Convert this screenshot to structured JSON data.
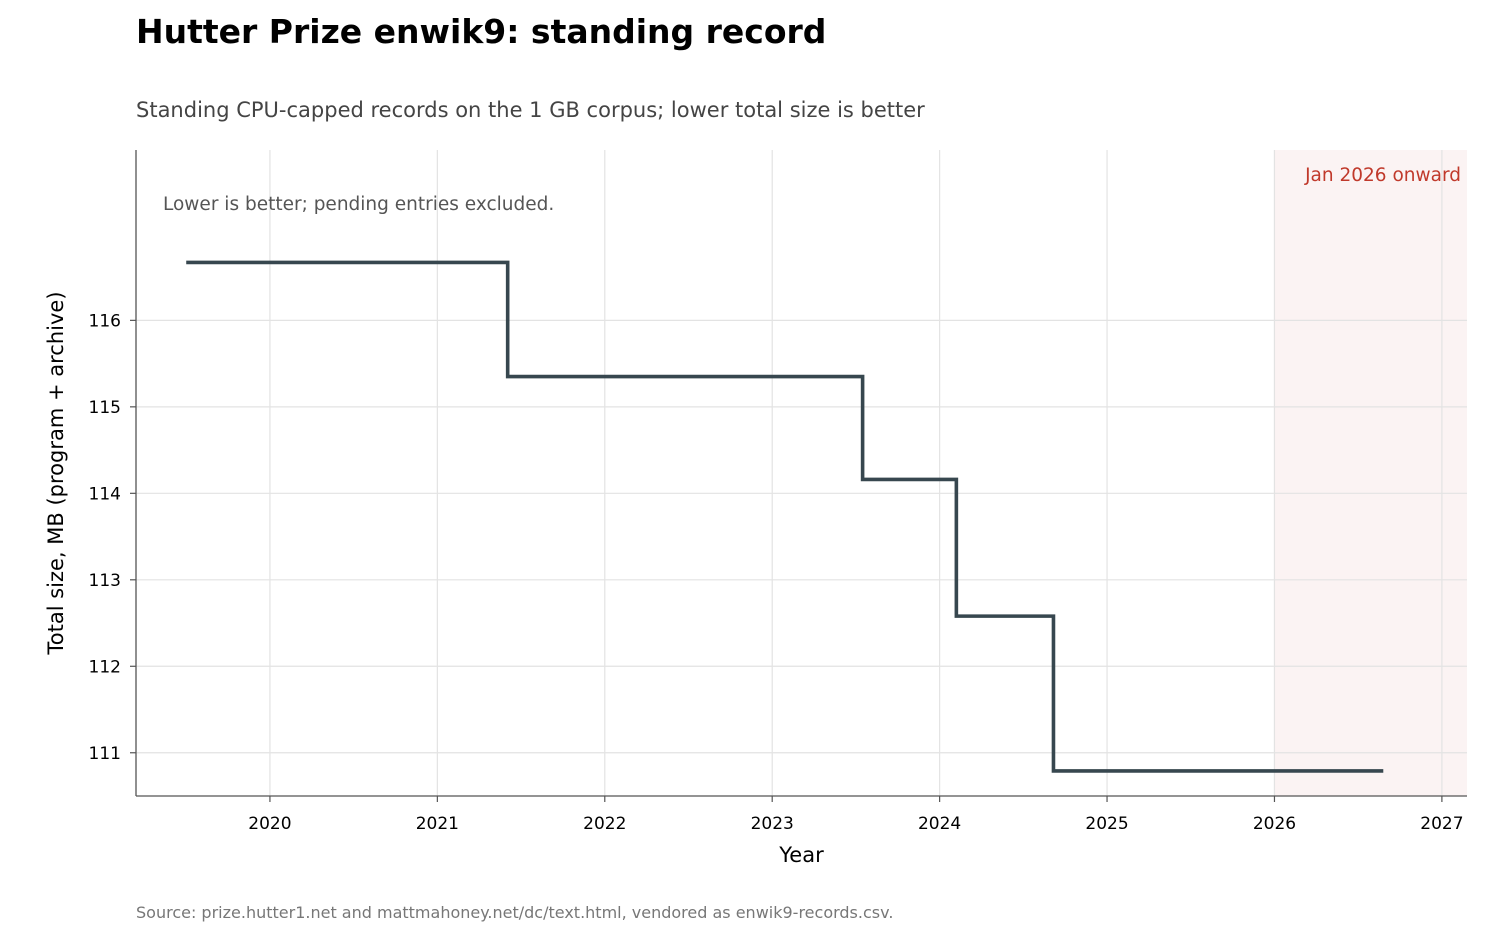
{
  "chart_data": {
    "type": "line",
    "step": "post",
    "title": "Hutter Prize enwik9: standing record",
    "subtitle": "Standing CPU-capped records on the 1 GB corpus; lower total size is better",
    "xlabel": "Year",
    "ylabel": "Total size, MB (program + archive)",
    "xlim": [
      2019.2,
      2027.15
    ],
    "ylim": [
      110.5,
      117.97
    ],
    "x_ticks": [
      2020,
      2021,
      2022,
      2023,
      2024,
      2025,
      2026,
      2027
    ],
    "y_ticks": [
      111,
      112,
      113,
      114,
      115,
      116
    ],
    "grid": true,
    "series": [
      {
        "x": [
          2019.5,
          2021.42,
          2023.54,
          2024.1,
          2024.68,
          2026.65
        ],
        "y": [
          116.67,
          115.35,
          114.16,
          112.58,
          110.79,
          110.79
        ],
        "color": "#37474f"
      }
    ],
    "shaded_region": {
      "x_start": 2026.0,
      "label": "Jan 2026 onward",
      "color": "#c0392b"
    },
    "annotation": "Lower is better; pending entries excluded.",
    "source": "Source: prize.hutter1.net and mattmahoney.net/dc/text.html, vendored as enwik9-records.csv."
  }
}
